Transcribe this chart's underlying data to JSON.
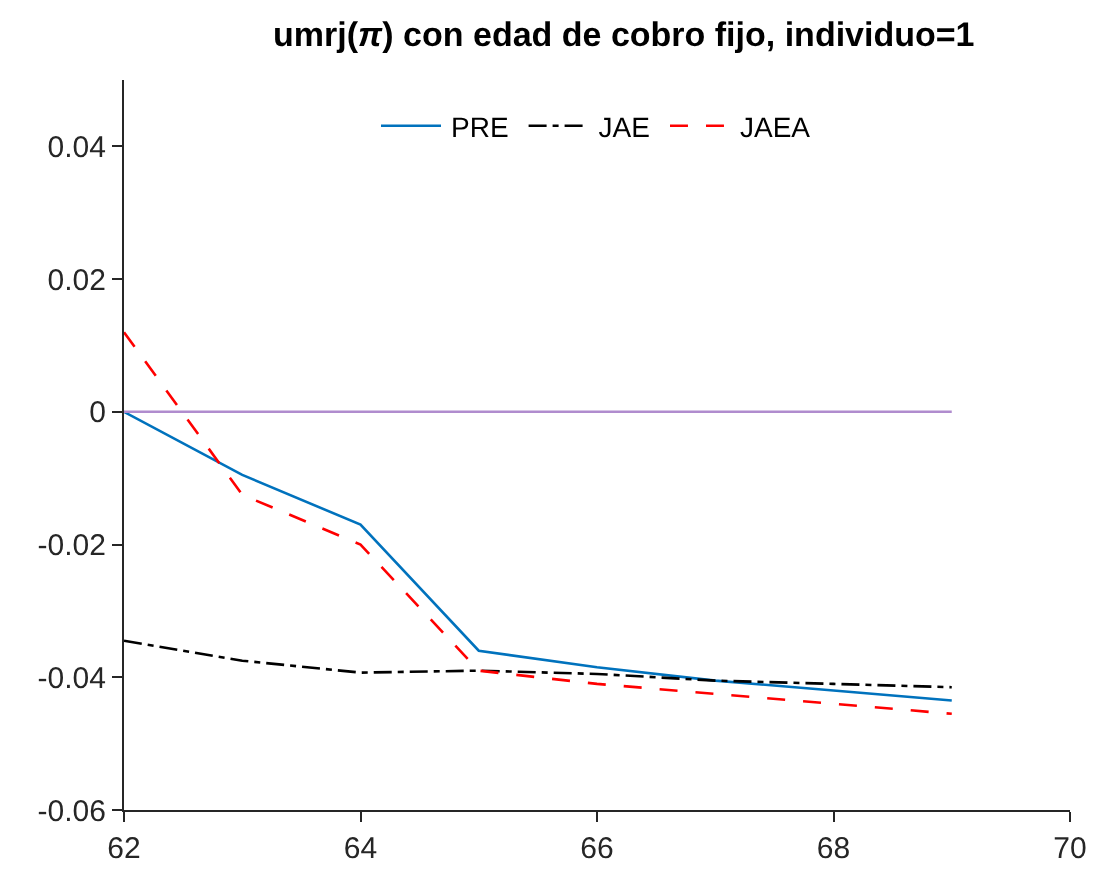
{
  "chart_data": {
    "type": "line",
    "title": "umrj(π) con edad de cobro fijo, individuo=1",
    "x": [
      62,
      63,
      64,
      65,
      66,
      67,
      68,
      69
    ],
    "series": [
      {
        "name": "PRE",
        "color": "#0072bd",
        "line_style": "solid",
        "values": [
          0,
          -0.0095,
          -0.017,
          -0.036,
          -0.0385,
          -0.0405,
          -0.042,
          -0.0435
        ]
      },
      {
        "name": "JAE",
        "color": "#000000",
        "line_style": "dashdot",
        "values": [
          -0.0345,
          -0.0375,
          -0.0393,
          -0.039,
          -0.0395,
          -0.0405,
          -0.041,
          -0.0415
        ]
      },
      {
        "name": "JAEA",
        "color": "#ff0000",
        "line_style": "dashed",
        "values": [
          0.012,
          -0.0125,
          -0.02,
          -0.039,
          -0.041,
          -0.0425,
          -0.044,
          -0.0455
        ]
      },
      {
        "color": "#b08cce",
        "line_style": "solid",
        "values": [
          0,
          0,
          0,
          0,
          0,
          0,
          0,
          0
        ]
      }
    ],
    "xlim": [
      62,
      70
    ],
    "xticks": [
      62,
      64,
      66,
      68,
      70
    ],
    "ylim": [
      -0.06,
      0.05
    ],
    "yticks": [
      -0.06,
      -0.04,
      -0.02,
      0,
      0.02,
      0.04
    ],
    "legend": "top",
    "marker": "none"
  }
}
